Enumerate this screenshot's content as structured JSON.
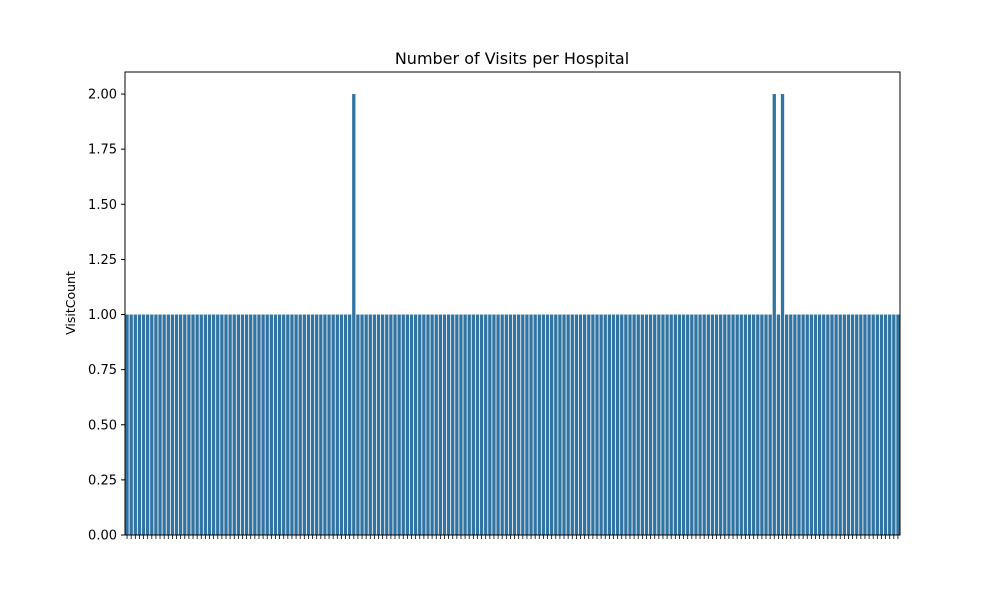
{
  "chart_data": {
    "type": "bar",
    "title": "Number of Visits per Hospital",
    "xlabel": "",
    "ylabel": "VisitCount",
    "ylim": [
      0,
      2.1
    ],
    "yticks": [
      0.0,
      0.25,
      0.5,
      0.75,
      1.0,
      1.25,
      1.5,
      1.75,
      2.0
    ],
    "ytick_labels": [
      "0.00",
      "0.25",
      "0.50",
      "0.75",
      "1.00",
      "1.25",
      "1.50",
      "1.75",
      "2.00"
    ],
    "bar_color": "#3274a1",
    "values": [
      1,
      1,
      1,
      1,
      1,
      1,
      1,
      1,
      1,
      1,
      1,
      1,
      1,
      1,
      1,
      1,
      1,
      1,
      1,
      1,
      1,
      1,
      1,
      1,
      1,
      1,
      1,
      1,
      1,
      1,
      1,
      1,
      1,
      1,
      1,
      1,
      1,
      1,
      1,
      1,
      1,
      1,
      1,
      1,
      1,
      1,
      1,
      1,
      1,
      1,
      1,
      1,
      1,
      1,
      1,
      2,
      1,
      1,
      1,
      1,
      1,
      1,
      1,
      1,
      1,
      1,
      1,
      1,
      1,
      1,
      1,
      1,
      1,
      1,
      1,
      1,
      1,
      1,
      1,
      1,
      1,
      1,
      1,
      1,
      1,
      1,
      1,
      1,
      1,
      1,
      1,
      1,
      1,
      1,
      1,
      1,
      1,
      1,
      1,
      1,
      1,
      1,
      1,
      1,
      1,
      1,
      1,
      1,
      1,
      1,
      1,
      1,
      1,
      1,
      1,
      1,
      1,
      1,
      1,
      1,
      1,
      1,
      1,
      1,
      1,
      1,
      1,
      1,
      1,
      1,
      1,
      1,
      1,
      1,
      1,
      1,
      1,
      1,
      1,
      1,
      1,
      1,
      1,
      1,
      1,
      1,
      1,
      1,
      1,
      1,
      1,
      1,
      1,
      1,
      1,
      1,
      1,
      2,
      1,
      2,
      1,
      1,
      1,
      1,
      1,
      1,
      1,
      1,
      1,
      1,
      1,
      1,
      1,
      1,
      1,
      1,
      1,
      1,
      1,
      1,
      1,
      1,
      1,
      1,
      1,
      1,
      1,
      1
    ]
  }
}
